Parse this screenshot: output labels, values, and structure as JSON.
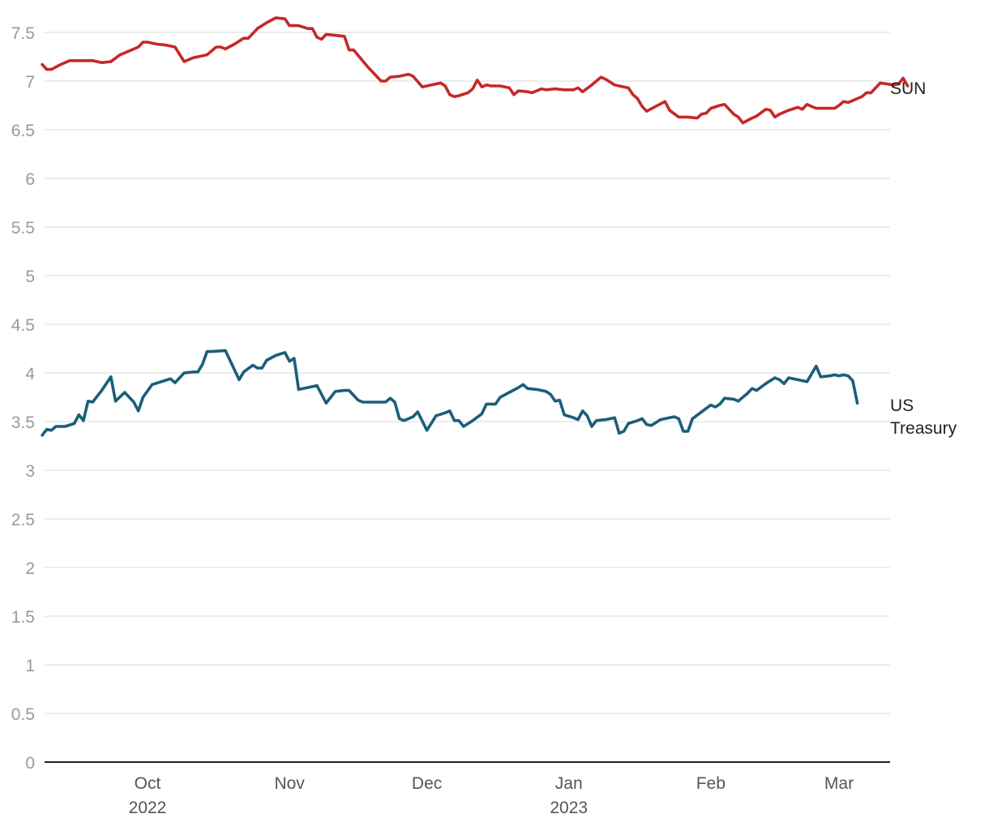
{
  "chart_data": {
    "type": "line",
    "title": "",
    "xlabel": "",
    "ylabel": "",
    "ylim": [
      0,
      7.5
    ],
    "yticks": [
      "0",
      "0.5",
      "1",
      "1.5",
      "2",
      "2.5",
      "3",
      "3.5",
      "4",
      "4.5",
      "5",
      "5.5",
      "6",
      "6.5",
      "7",
      "7.5"
    ],
    "xlim": [
      "2022-09-05",
      "2023-03-15"
    ],
    "xticks": [
      {
        "date": "2022-10-01",
        "label": "Oct",
        "sublabel": "2022"
      },
      {
        "date": "2022-11-01",
        "label": "Nov",
        "sublabel": ""
      },
      {
        "date": "2022-12-01",
        "label": "Dec",
        "sublabel": ""
      },
      {
        "date": "2023-01-01",
        "label": "Jan",
        "sublabel": "2023"
      },
      {
        "date": "2023-02-01",
        "label": "Feb",
        "sublabel": ""
      },
      {
        "date": "2023-03-01",
        "label": "Mar",
        "sublabel": ""
      }
    ],
    "grid": true,
    "legend": "direct labels at right end of lines",
    "series": [
      {
        "name": "SUN",
        "color": "#c62828",
        "label_lines": [
          "SUN"
        ],
        "points": [
          [
            "2022-09-08",
            7.17
          ],
          [
            "2022-09-09",
            7.12
          ],
          [
            "2022-09-10",
            7.12
          ],
          [
            "2022-09-12",
            7.17
          ],
          [
            "2022-09-14",
            7.21
          ],
          [
            "2022-09-17",
            7.21
          ],
          [
            "2022-09-19",
            7.21
          ],
          [
            "2022-09-21",
            7.19
          ],
          [
            "2022-09-23",
            7.2
          ],
          [
            "2022-09-25",
            7.27
          ],
          [
            "2022-09-27",
            7.31
          ],
          [
            "2022-09-29",
            7.35
          ],
          [
            "2022-09-30",
            7.4
          ],
          [
            "2022-10-01",
            7.4
          ],
          [
            "2022-10-03",
            7.38
          ],
          [
            "2022-10-05",
            7.37
          ],
          [
            "2022-10-07",
            7.35
          ],
          [
            "2022-10-09",
            7.2
          ],
          [
            "2022-10-11",
            7.24
          ],
          [
            "2022-10-14",
            7.27
          ],
          [
            "2022-10-16",
            7.35
          ],
          [
            "2022-10-17",
            7.35
          ],
          [
            "2022-10-18",
            7.33
          ],
          [
            "2022-10-20",
            7.38
          ],
          [
            "2022-10-22",
            7.44
          ],
          [
            "2022-10-23",
            7.44
          ],
          [
            "2022-10-25",
            7.54
          ],
          [
            "2022-10-27",
            7.6
          ],
          [
            "2022-10-29",
            7.65
          ],
          [
            "2022-10-31",
            7.64
          ],
          [
            "2022-11-01",
            7.57
          ],
          [
            "2022-11-03",
            7.57
          ],
          [
            "2022-11-05",
            7.54
          ],
          [
            "2022-11-06",
            7.54
          ],
          [
            "2022-11-07",
            7.45
          ],
          [
            "2022-11-08",
            7.43
          ],
          [
            "2022-11-09",
            7.48
          ],
          [
            "2022-11-11",
            7.47
          ],
          [
            "2022-11-13",
            7.46
          ],
          [
            "2022-11-14",
            7.32
          ],
          [
            "2022-11-15",
            7.32
          ],
          [
            "2022-11-18",
            7.15
          ],
          [
            "2022-11-20",
            7.05
          ],
          [
            "2022-11-21",
            7.0
          ],
          [
            "2022-11-22",
            7.0
          ],
          [
            "2022-11-23",
            7.04
          ],
          [
            "2022-11-25",
            7.05
          ],
          [
            "2022-11-27",
            7.07
          ],
          [
            "2022-11-28",
            7.05
          ],
          [
            "2022-11-30",
            6.94
          ],
          [
            "2022-12-02",
            6.96
          ],
          [
            "2022-12-04",
            6.98
          ],
          [
            "2022-12-05",
            6.95
          ],
          [
            "2022-12-06",
            6.86
          ],
          [
            "2022-12-07",
            6.84
          ],
          [
            "2022-12-08",
            6.85
          ],
          [
            "2022-12-10",
            6.88
          ],
          [
            "2022-12-11",
            6.92
          ],
          [
            "2022-12-12",
            7.01
          ],
          [
            "2022-12-13",
            6.94
          ],
          [
            "2022-12-14",
            6.96
          ],
          [
            "2022-12-15",
            6.95
          ],
          [
            "2022-12-17",
            6.95
          ],
          [
            "2022-12-19",
            6.93
          ],
          [
            "2022-12-20",
            6.86
          ],
          [
            "2022-12-21",
            6.9
          ],
          [
            "2022-12-23",
            6.89
          ],
          [
            "2022-12-24",
            6.88
          ],
          [
            "2022-12-26",
            6.92
          ],
          [
            "2022-12-27",
            6.91
          ],
          [
            "2022-12-29",
            6.92
          ],
          [
            "2022-12-31",
            6.91
          ],
          [
            "2023-01-02",
            6.91
          ],
          [
            "2023-01-03",
            6.93
          ],
          [
            "2023-01-04",
            6.89
          ],
          [
            "2023-01-06",
            6.96
          ],
          [
            "2023-01-08",
            7.04
          ],
          [
            "2023-01-09",
            7.02
          ],
          [
            "2023-01-11",
            6.96
          ],
          [
            "2023-01-13",
            6.94
          ],
          [
            "2023-01-14",
            6.93
          ],
          [
            "2023-01-15",
            6.86
          ],
          [
            "2023-01-16",
            6.82
          ],
          [
            "2023-01-17",
            6.74
          ],
          [
            "2023-01-18",
            6.69
          ],
          [
            "2023-01-20",
            6.74
          ],
          [
            "2023-01-22",
            6.79
          ],
          [
            "2023-01-23",
            6.7
          ],
          [
            "2023-01-25",
            6.63
          ],
          [
            "2023-01-27",
            6.63
          ],
          [
            "2023-01-29",
            6.62
          ],
          [
            "2023-01-30",
            6.66
          ],
          [
            "2023-01-31",
            6.67
          ],
          [
            "2023-02-01",
            6.72
          ],
          [
            "2023-02-03",
            6.75
          ],
          [
            "2023-02-04",
            6.76
          ],
          [
            "2023-02-06",
            6.66
          ],
          [
            "2023-02-07",
            6.63
          ],
          [
            "2023-02-08",
            6.57
          ],
          [
            "2023-02-10",
            6.62
          ],
          [
            "2023-02-11",
            6.64
          ],
          [
            "2023-02-13",
            6.71
          ],
          [
            "2023-02-14",
            6.7
          ],
          [
            "2023-02-15",
            6.63
          ],
          [
            "2023-02-16",
            6.66
          ],
          [
            "2023-02-18",
            6.7
          ],
          [
            "2023-02-20",
            6.73
          ],
          [
            "2023-02-21",
            6.71
          ],
          [
            "2023-02-22",
            6.76
          ],
          [
            "2023-02-24",
            6.72
          ],
          [
            "2023-02-26",
            6.72
          ],
          [
            "2023-02-28",
            6.72
          ],
          [
            "2023-03-01",
            6.75
          ],
          [
            "2023-03-02",
            6.79
          ],
          [
            "2023-03-03",
            6.78
          ],
          [
            "2023-03-05",
            6.82
          ],
          [
            "2023-03-06",
            6.84
          ],
          [
            "2023-03-07",
            6.88
          ],
          [
            "2023-03-08",
            6.88
          ],
          [
            "2023-03-10",
            6.98
          ],
          [
            "2023-03-13",
            6.96
          ],
          [
            "2023-03-14",
            6.97
          ],
          [
            "2023-03-15",
            7.03
          ],
          [
            "2023-03-16",
            6.95
          ]
        ]
      },
      {
        "name": "US Treasury",
        "color": "#1b5e7a",
        "label_lines": [
          "US",
          "Treasury"
        ],
        "points": [
          [
            "2022-09-08",
            3.36
          ],
          [
            "2022-09-09",
            3.42
          ],
          [
            "2022-09-10",
            3.41
          ],
          [
            "2022-09-11",
            3.45
          ],
          [
            "2022-09-13",
            3.45
          ],
          [
            "2022-09-15",
            3.48
          ],
          [
            "2022-09-16",
            3.57
          ],
          [
            "2022-09-17",
            3.51
          ],
          [
            "2022-09-18",
            3.71
          ],
          [
            "2022-09-19",
            3.7
          ],
          [
            "2022-09-21",
            3.82
          ],
          [
            "2022-09-23",
            3.96
          ],
          [
            "2022-09-24",
            3.71
          ],
          [
            "2022-09-26",
            3.8
          ],
          [
            "2022-09-28",
            3.7
          ],
          [
            "2022-09-29",
            3.61
          ],
          [
            "2022-09-30",
            3.75
          ],
          [
            "2022-10-02",
            3.88
          ],
          [
            "2022-10-04",
            3.91
          ],
          [
            "2022-10-06",
            3.94
          ],
          [
            "2022-10-07",
            3.9
          ],
          [
            "2022-10-09",
            4.0
          ],
          [
            "2022-10-11",
            4.01
          ],
          [
            "2022-10-12",
            4.01
          ],
          [
            "2022-10-13",
            4.09
          ],
          [
            "2022-10-14",
            4.22
          ],
          [
            "2022-10-15",
            4.22
          ],
          [
            "2022-10-18",
            4.23
          ],
          [
            "2022-10-19",
            4.13
          ],
          [
            "2022-10-21",
            3.93
          ],
          [
            "2022-10-22",
            4.01
          ],
          [
            "2022-10-24",
            4.08
          ],
          [
            "2022-10-25",
            4.05
          ],
          [
            "2022-10-26",
            4.05
          ],
          [
            "2022-10-27",
            4.13
          ],
          [
            "2022-10-29",
            4.18
          ],
          [
            "2022-10-31",
            4.21
          ],
          [
            "2022-11-01",
            4.12
          ],
          [
            "2022-11-02",
            4.15
          ],
          [
            "2022-11-03",
            3.83
          ],
          [
            "2022-11-05",
            3.85
          ],
          [
            "2022-11-07",
            3.87
          ],
          [
            "2022-11-09",
            3.69
          ],
          [
            "2022-11-10",
            3.75
          ],
          [
            "2022-11-11",
            3.81
          ],
          [
            "2022-11-13",
            3.82
          ],
          [
            "2022-11-14",
            3.82
          ],
          [
            "2022-11-16",
            3.72
          ],
          [
            "2022-11-17",
            3.7
          ],
          [
            "2022-11-19",
            3.7
          ],
          [
            "2022-11-22",
            3.7
          ],
          [
            "2022-11-23",
            3.74
          ],
          [
            "2022-11-24",
            3.7
          ],
          [
            "2022-11-25",
            3.53
          ],
          [
            "2022-11-26",
            3.51
          ],
          [
            "2022-11-28",
            3.55
          ],
          [
            "2022-11-29",
            3.6
          ],
          [
            "2022-12-01",
            3.41
          ],
          [
            "2022-12-03",
            3.56
          ],
          [
            "2022-12-05",
            3.59
          ],
          [
            "2022-12-06",
            3.61
          ],
          [
            "2022-12-07",
            3.51
          ],
          [
            "2022-12-08",
            3.51
          ],
          [
            "2022-12-09",
            3.45
          ],
          [
            "2022-12-11",
            3.51
          ],
          [
            "2022-12-13",
            3.58
          ],
          [
            "2022-12-14",
            3.68
          ],
          [
            "2022-12-16",
            3.68
          ],
          [
            "2022-12-17",
            3.75
          ],
          [
            "2022-12-19",
            3.8
          ],
          [
            "2022-12-21",
            3.85
          ],
          [
            "2022-12-22",
            3.88
          ],
          [
            "2022-12-23",
            3.84
          ],
          [
            "2022-12-25",
            3.83
          ],
          [
            "2022-12-27",
            3.81
          ],
          [
            "2022-12-28",
            3.78
          ],
          [
            "2022-12-29",
            3.71
          ],
          [
            "2022-12-30",
            3.72
          ],
          [
            "2022-12-31",
            3.57
          ],
          [
            "2023-01-02",
            3.54
          ],
          [
            "2023-01-03",
            3.52
          ],
          [
            "2023-01-04",
            3.61
          ],
          [
            "2023-01-05",
            3.56
          ],
          [
            "2023-01-06",
            3.45
          ],
          [
            "2023-01-07",
            3.51
          ],
          [
            "2023-01-09",
            3.52
          ],
          [
            "2023-01-11",
            3.54
          ],
          [
            "2023-01-12",
            3.38
          ],
          [
            "2023-01-13",
            3.4
          ],
          [
            "2023-01-14",
            3.48
          ],
          [
            "2023-01-16",
            3.51
          ],
          [
            "2023-01-17",
            3.53
          ],
          [
            "2023-01-18",
            3.47
          ],
          [
            "2023-01-19",
            3.46
          ],
          [
            "2023-01-21",
            3.52
          ],
          [
            "2023-01-23",
            3.54
          ],
          [
            "2023-01-24",
            3.55
          ],
          [
            "2023-01-25",
            3.53
          ],
          [
            "2023-01-26",
            3.4
          ],
          [
            "2023-01-27",
            3.4
          ],
          [
            "2023-01-28",
            3.53
          ],
          [
            "2023-01-30",
            3.6
          ],
          [
            "2023-02-01",
            3.67
          ],
          [
            "2023-02-02",
            3.65
          ],
          [
            "2023-02-03",
            3.68
          ],
          [
            "2023-02-04",
            3.74
          ],
          [
            "2023-02-06",
            3.73
          ],
          [
            "2023-02-07",
            3.71
          ],
          [
            "2023-02-09",
            3.79
          ],
          [
            "2023-02-10",
            3.84
          ],
          [
            "2023-02-11",
            3.82
          ],
          [
            "2023-02-13",
            3.89
          ],
          [
            "2023-02-15",
            3.95
          ],
          [
            "2023-02-16",
            3.93
          ],
          [
            "2023-02-17",
            3.89
          ],
          [
            "2023-02-18",
            3.95
          ],
          [
            "2023-02-20",
            3.93
          ],
          [
            "2023-02-22",
            3.91
          ],
          [
            "2023-02-24",
            4.07
          ],
          [
            "2023-02-25",
            3.96
          ],
          [
            "2023-02-27",
            3.97
          ],
          [
            "2023-02-28",
            3.98
          ],
          [
            "2023-03-01",
            3.97
          ],
          [
            "2023-03-02",
            3.98
          ],
          [
            "2023-03-03",
            3.97
          ],
          [
            "2023-03-04",
            3.92
          ],
          [
            "2023-03-05",
            3.69
          ]
        ]
      }
    ]
  }
}
